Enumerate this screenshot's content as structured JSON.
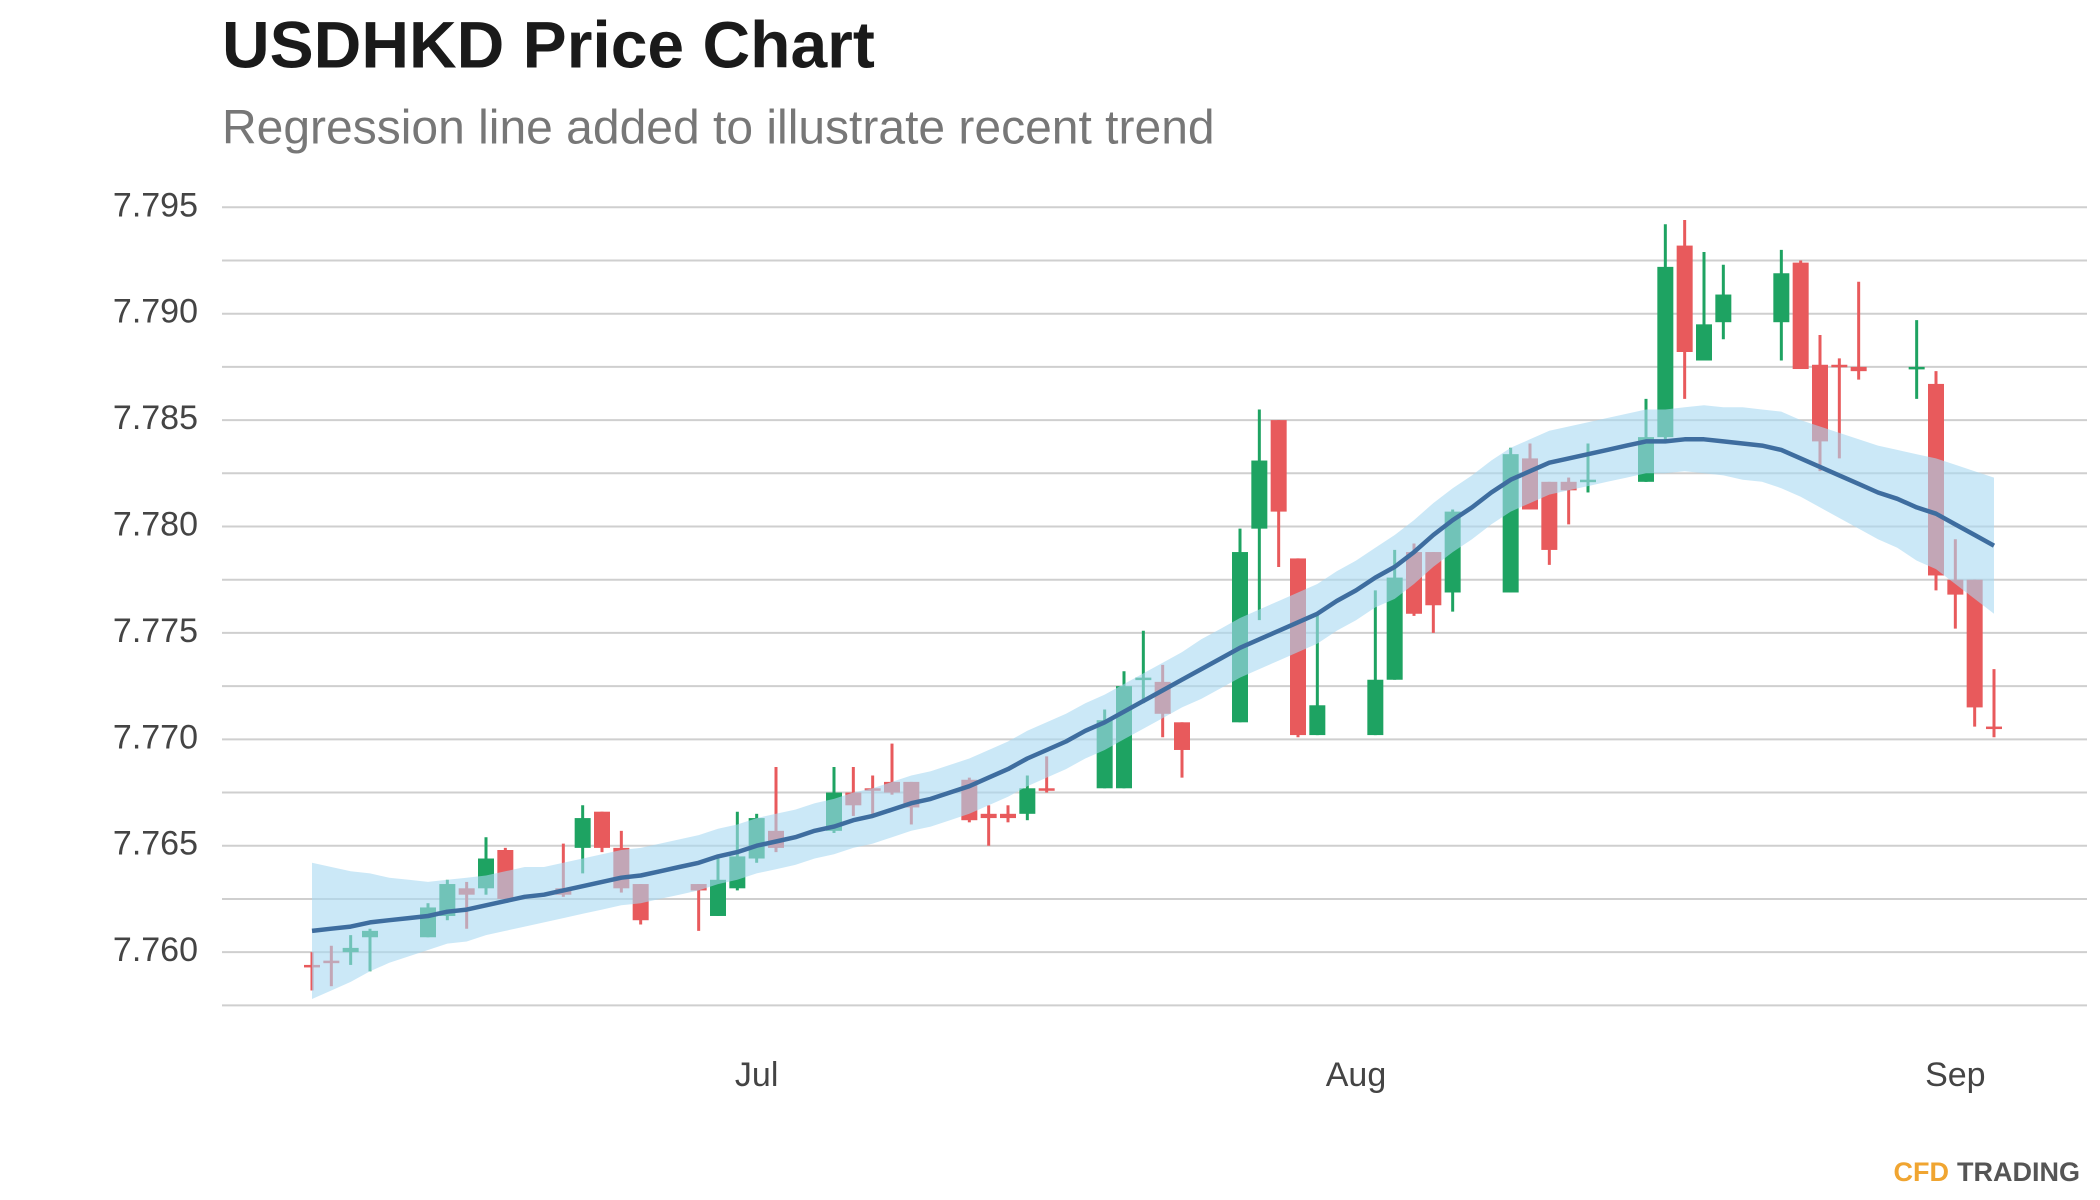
{
  "chart_data": {
    "type": "candlestick",
    "title": "USDHKD Price Chart",
    "subtitle": "Regression line added to illustrate recent trend",
    "logo": {
      "first": "CFD",
      "second": "TRADING"
    },
    "categories": [
      null,
      null,
      null,
      null,
      null,
      null,
      null,
      null,
      null,
      null,
      null,
      null,
      null,
      null,
      null,
      null,
      null,
      null,
      null,
      null,
      null,
      null,
      null,
      "Jul",
      null,
      null,
      null,
      null,
      null,
      null,
      null,
      null,
      null,
      null,
      null,
      null,
      null,
      null,
      null,
      null,
      null,
      null,
      null,
      null,
      null,
      null,
      null,
      null,
      null,
      null,
      null,
      null,
      null,
      null,
      "Aug",
      null,
      null,
      null,
      null,
      null,
      null,
      null,
      null,
      null,
      null,
      null,
      null,
      null,
      null,
      null,
      null,
      null,
      null,
      null,
      null,
      null,
      null,
      null,
      null,
      null,
      null,
      null,
      null,
      null,
      null,
      "Sep",
      null,
      null
    ],
    "open": [
      7.7594,
      7.7596,
      7.76,
      7.7607,
      null,
      null,
      7.7607,
      7.7617,
      7.763,
      7.763,
      7.7648,
      null,
      null,
      7.763,
      7.7649,
      7.7666,
      7.7649,
      7.7632,
      null,
      null,
      7.7632,
      7.7617,
      7.763,
      7.7644,
      7.7657,
      null,
      null,
      7.7657,
      7.7675,
      7.7677,
      7.768,
      7.768,
      null,
      null,
      7.7681,
      7.7665,
      7.7665,
      7.7665,
      7.7677,
      null,
      null,
      7.7677,
      7.7677,
      7.7728,
      7.7727,
      7.7708,
      null,
      null,
      7.7708,
      7.7799,
      7.785,
      7.7785,
      7.7702,
      null,
      null,
      7.7702,
      7.7728,
      7.7788,
      7.7788,
      7.7769,
      null,
      null,
      7.7769,
      7.7832,
      7.7821,
      7.7821,
      7.7821,
      null,
      null,
      7.7821,
      7.7842,
      7.7932,
      7.7878,
      7.7896,
      null,
      null,
      7.7896,
      7.7924,
      7.7876,
      7.7876,
      7.7875,
      null,
      null,
      7.7874,
      7.7867,
      7.7775,
      7.7775,
      7.7706
    ],
    "high": [
      7.76,
      7.7603,
      7.7608,
      7.7611,
      null,
      null,
      7.7623,
      7.7634,
      7.7633,
      7.7654,
      7.7649,
      null,
      null,
      7.7651,
      7.7669,
      7.7666,
      7.7657,
      7.7632,
      null,
      null,
      7.7632,
      7.7645,
      7.7666,
      7.7665,
      7.7687,
      null,
      null,
      7.7687,
      7.7687,
      7.7683,
      7.7698,
      7.768,
      null,
      null,
      7.7682,
      7.7669,
      7.7669,
      7.7683,
      7.7692,
      null,
      null,
      7.7714,
      7.7732,
      7.7751,
      7.7735,
      7.7708,
      null,
      null,
      7.7799,
      7.7855,
      7.785,
      7.7785,
      7.7759,
      null,
      null,
      7.777,
      7.7789,
      7.7792,
      7.7788,
      7.7808,
      null,
      null,
      7.7837,
      7.7839,
      7.7821,
      7.7823,
      7.7839,
      null,
      null,
      7.786,
      7.7942,
      7.7944,
      7.7929,
      7.7923,
      null,
      null,
      7.793,
      7.7925,
      7.789,
      7.7879,
      7.7915,
      null,
      null,
      7.7897,
      7.7873,
      7.7794,
      7.7775,
      7.7733
    ],
    "low": [
      7.7582,
      7.7584,
      7.7594,
      7.7591,
      null,
      null,
      7.7607,
      7.7615,
      7.7611,
      7.7627,
      7.7625,
      null,
      null,
      7.7626,
      7.7637,
      7.7647,
      7.7628,
      7.7613,
      null,
      null,
      7.761,
      7.7617,
      7.7629,
      7.7642,
      7.7647,
      null,
      null,
      7.7656,
      7.7664,
      7.7664,
      7.7674,
      7.766,
      null,
      null,
      7.7661,
      7.765,
      7.7661,
      7.7662,
      7.7675,
      null,
      null,
      7.7677,
      7.7677,
      7.7717,
      7.7701,
      7.7682,
      null,
      null,
      7.7708,
      7.7756,
      7.7781,
      7.7701,
      7.7702,
      null,
      null,
      7.7702,
      7.7728,
      7.7758,
      7.775,
      7.776,
      null,
      null,
      7.7769,
      7.7808,
      7.7782,
      7.7801,
      7.7816,
      null,
      null,
      7.7821,
      7.7839,
      7.786,
      7.7878,
      7.7888,
      null,
      null,
      7.7878,
      7.7874,
      7.7826,
      7.7832,
      7.7869,
      null,
      null,
      7.786,
      7.777,
      7.7752,
      7.7706,
      7.7701
    ],
    "close": [
      7.7593,
      7.7595,
      7.7602,
      7.761,
      null,
      null,
      7.7621,
      7.7632,
      7.7627,
      7.7644,
      7.7625,
      null,
      null,
      7.7627,
      7.7663,
      7.7649,
      7.763,
      7.7615,
      null,
      null,
      7.7629,
      7.7634,
      7.7645,
      7.7663,
      7.7649,
      null,
      null,
      7.7675,
      7.7669,
      7.7676,
      7.7675,
      7.7668,
      null,
      null,
      7.7662,
      7.7663,
      7.7663,
      7.7677,
      7.7676,
      null,
      null,
      7.7709,
      7.7725,
      7.7729,
      7.7712,
      7.7695,
      null,
      null,
      7.7788,
      7.7831,
      7.7807,
      7.7702,
      7.7716,
      null,
      null,
      7.7728,
      7.7776,
      7.7759,
      7.7763,
      7.7807,
      null,
      null,
      7.7834,
      7.7808,
      7.7789,
      7.7817,
      7.7822,
      null,
      null,
      7.7842,
      7.7922,
      7.7882,
      7.7895,
      7.7909,
      null,
      null,
      7.7919,
      7.7874,
      7.784,
      7.7875,
      7.7873,
      null,
      null,
      7.7875,
      7.7777,
      7.7768,
      7.7715,
      7.7705
    ],
    "up_color": "#1ea362",
    "down_color": "#e85a5c",
    "trend": {
      "color": "#3e6d9f",
      "values": [
        7.761,
        7.7611,
        7.7612,
        7.7614,
        7.7615,
        7.7616,
        7.7617,
        7.7619,
        7.762,
        7.7622,
        7.7624,
        7.7626,
        7.7627,
        7.7629,
        7.7631,
        7.7633,
        7.7635,
        7.7636,
        7.7638,
        7.764,
        7.7642,
        7.7645,
        7.7647,
        7.765,
        7.7652,
        7.7654,
        7.7657,
        7.7659,
        7.7662,
        7.7664,
        7.7667,
        7.767,
        7.7672,
        7.7675,
        7.7678,
        7.7682,
        7.7686,
        7.7691,
        7.7695,
        7.7699,
        7.7704,
        7.7708,
        7.7713,
        7.7718,
        7.7723,
        7.7728,
        7.7733,
        7.7738,
        7.7743,
        7.7747,
        7.7751,
        7.7755,
        7.7759,
        7.7765,
        7.777,
        7.7776,
        7.7781,
        7.7788,
        7.7796,
        7.7803,
        7.7809,
        7.7816,
        7.7822,
        7.7826,
        7.783,
        7.7832,
        7.7834,
        7.7836,
        7.7838,
        7.784,
        7.784,
        7.7841,
        7.7841,
        7.784,
        7.7839,
        7.7838,
        7.7836,
        7.7832,
        7.7828,
        7.7824,
        7.782,
        7.7816,
        7.7813,
        7.7809,
        7.7806,
        7.7801,
        7.7796,
        7.7791
      ]
    },
    "band": {
      "color": "#a9d9f1",
      "upper": [
        7.7642,
        7.764,
        7.7638,
        7.7637,
        7.7635,
        7.7634,
        7.7633,
        7.7634,
        7.7635,
        7.7636,
        7.7638,
        7.764,
        7.764,
        7.7642,
        7.7644,
        7.7646,
        7.7648,
        7.7649,
        7.7651,
        7.7653,
        7.7655,
        7.7658,
        7.766,
        7.7663,
        7.7665,
        7.7667,
        7.767,
        7.7672,
        7.7675,
        7.7677,
        7.768,
        7.7683,
        7.7685,
        7.7688,
        7.7691,
        7.7695,
        7.7699,
        7.7704,
        7.7708,
        7.7712,
        7.7717,
        7.7721,
        7.7726,
        7.7731,
        7.7736,
        7.7741,
        7.7747,
        7.7752,
        7.7757,
        7.7761,
        7.7765,
        7.7769,
        7.7773,
        7.7779,
        7.7784,
        7.779,
        7.7796,
        7.7803,
        7.7811,
        7.7818,
        7.7824,
        7.7831,
        7.7837,
        7.7841,
        7.7845,
        7.7847,
        7.7849,
        7.7851,
        7.7853,
        7.7855,
        7.7855,
        7.7856,
        7.7857,
        7.7856,
        7.7856,
        7.7855,
        7.7854,
        7.785,
        7.7847,
        7.7844,
        7.7841,
        7.7838,
        7.7836,
        7.7834,
        7.7832,
        7.7829,
        7.7826,
        7.7823
      ],
      "lower": [
        7.7578,
        7.7582,
        7.7586,
        7.7591,
        7.7595,
        7.7598,
        7.7601,
        7.7604,
        7.7605,
        7.7608,
        7.761,
        7.7612,
        7.7614,
        7.7616,
        7.7618,
        7.762,
        7.7622,
        7.7623,
        7.7625,
        7.7627,
        7.7629,
        7.7632,
        7.7634,
        7.7637,
        7.7639,
        7.7641,
        7.7644,
        7.7646,
        7.7649,
        7.7651,
        7.7654,
        7.7657,
        7.7659,
        7.7662,
        7.7665,
        7.7669,
        7.7673,
        7.7678,
        7.7682,
        7.7686,
        7.7691,
        7.7695,
        7.77,
        7.7705,
        7.771,
        7.7715,
        7.7719,
        7.7724,
        7.7729,
        7.7733,
        7.7737,
        7.7741,
        7.7745,
        7.7751,
        7.7756,
        7.7762,
        7.7766,
        7.7773,
        7.7781,
        7.7788,
        7.7794,
        7.7801,
        7.7807,
        7.7811,
        7.7815,
        7.7817,
        7.7819,
        7.7821,
        7.7823,
        7.7825,
        7.7825,
        7.7826,
        7.7825,
        7.7824,
        7.7822,
        7.7821,
        7.7818,
        7.7814,
        7.7809,
        7.7804,
        7.7799,
        7.7794,
        7.779,
        7.7784,
        7.778,
        7.7773,
        7.7766,
        7.7759
      ]
    },
    "ylim": [
      7.757,
      7.796
    ],
    "yticks": [
      {
        "value": 7.76,
        "label": "7.760"
      },
      {
        "value": 7.765,
        "label": "7.765"
      },
      {
        "value": 7.77,
        "label": "7.770"
      },
      {
        "value": 7.775,
        "label": "7.775"
      },
      {
        "value": 7.78,
        "label": "7.780"
      },
      {
        "value": 7.785,
        "label": "7.785"
      },
      {
        "value": 7.79,
        "label": "7.790"
      },
      {
        "value": 7.795,
        "label": "7.795"
      }
    ],
    "yminorticks": [
      7.7575,
      7.7625,
      7.7675,
      7.7725,
      7.7775,
      7.7825,
      7.7875,
      7.7925
    ],
    "grid": true
  }
}
